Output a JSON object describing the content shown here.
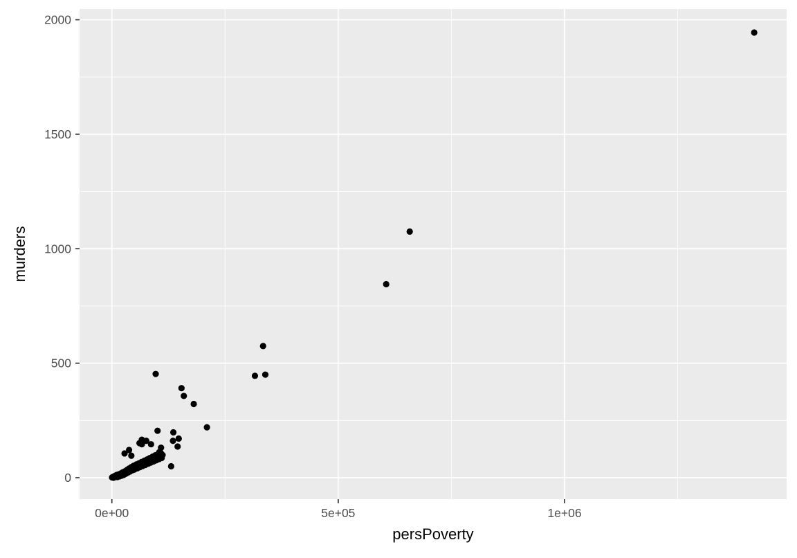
{
  "chart_data": {
    "type": "scatter",
    "title": "",
    "xlabel": "persPoverty",
    "ylabel": "murders",
    "legend": "none",
    "grid": "major and minor white gridlines on grey panel",
    "panel_color": "#EBEBEB",
    "grid_color": "#FFFFFF",
    "point_color": "#000000",
    "axis_text_color": "#4D4D4D",
    "axis_title_color": "#000000",
    "tick_color": "#333333",
    "xlim": [
      -71400,
      1490600
    ],
    "ylim": [
      -94,
      2047
    ],
    "x_ticks": {
      "values": [
        0,
        500000,
        1000000
      ],
      "labels": [
        "0e+00",
        "5e+05",
        "1e+06"
      ]
    },
    "x_minor_ticks": [
      250000,
      750000,
      1250000
    ],
    "y_ticks": {
      "values": [
        0,
        500,
        1000,
        1500,
        2000
      ],
      "labels": [
        "0",
        "500",
        "1000",
        "1500",
        "2000"
      ]
    },
    "y_minor_ticks": [
      250,
      750,
      1250,
      1750
    ],
    "points": [
      [
        1419000,
        1944
      ],
      [
        658000,
        1075
      ],
      [
        606000,
        845
      ],
      [
        334000,
        575
      ],
      [
        316000,
        445
      ],
      [
        339000,
        450
      ],
      [
        96800,
        453
      ],
      [
        153800,
        391
      ],
      [
        159000,
        357
      ],
      [
        180900,
        322
      ],
      [
        210000,
        220
      ],
      [
        100900,
        205
      ],
      [
        135800,
        198
      ],
      [
        147700,
        171
      ],
      [
        66200,
        166
      ],
      [
        135000,
        161
      ],
      [
        145200,
        136
      ],
      [
        108600,
        131
      ],
      [
        104400,
        106
      ],
      [
        130900,
        50
      ],
      [
        500,
        1
      ],
      [
        2000,
        3
      ],
      [
        3500,
        0
      ],
      [
        5000,
        6
      ],
      [
        6500,
        2
      ],
      [
        8000,
        9
      ],
      [
        9500,
        5
      ],
      [
        11000,
        12
      ],
      [
        12500,
        3
      ],
      [
        14000,
        8
      ],
      [
        15500,
        15
      ],
      [
        17000,
        6
      ],
      [
        18500,
        11
      ],
      [
        20000,
        19
      ],
      [
        21500,
        9
      ],
      [
        23000,
        16
      ],
      [
        24500,
        24
      ],
      [
        26000,
        12
      ],
      [
        27500,
        20
      ],
      [
        29000,
        28
      ],
      [
        30500,
        17
      ],
      [
        32000,
        25
      ],
      [
        33500,
        34
      ],
      [
        35000,
        22
      ],
      [
        36500,
        31
      ],
      [
        38000,
        40
      ],
      [
        40000,
        27
      ],
      [
        41500,
        37
      ],
      [
        43000,
        46
      ],
      [
        45000,
        32
      ],
      [
        46500,
        42
      ],
      [
        48000,
        52
      ],
      [
        50000,
        36
      ],
      [
        52000,
        47
      ],
      [
        54000,
        58
      ],
      [
        56000,
        41
      ],
      [
        58000,
        52
      ],
      [
        60000,
        63
      ],
      [
        62000,
        46
      ],
      [
        64000,
        57
      ],
      [
        66000,
        69
      ],
      [
        68000,
        51
      ],
      [
        70000,
        62
      ],
      [
        72000,
        74
      ],
      [
        74000,
        56
      ],
      [
        76000,
        68
      ],
      [
        78000,
        80
      ],
      [
        80000,
        61
      ],
      [
        82000,
        73
      ],
      [
        84000,
        86
      ],
      [
        86000,
        66
      ],
      [
        88000,
        79
      ],
      [
        90000,
        92
      ],
      [
        92000,
        71
      ],
      [
        94000,
        84
      ],
      [
        96000,
        98
      ],
      [
        98000,
        76
      ],
      [
        100000,
        89
      ],
      [
        102000,
        103
      ],
      [
        104000,
        81
      ],
      [
        106000,
        94
      ],
      [
        108000,
        108
      ],
      [
        110000,
        86
      ],
      [
        112000,
        99
      ],
      [
        61000,
        151
      ],
      [
        76000,
        161
      ],
      [
        86500,
        146
      ],
      [
        66200,
        146
      ],
      [
        104500,
        111
      ],
      [
        28000,
        106
      ],
      [
        38000,
        121
      ],
      [
        43000,
        96
      ]
    ]
  }
}
